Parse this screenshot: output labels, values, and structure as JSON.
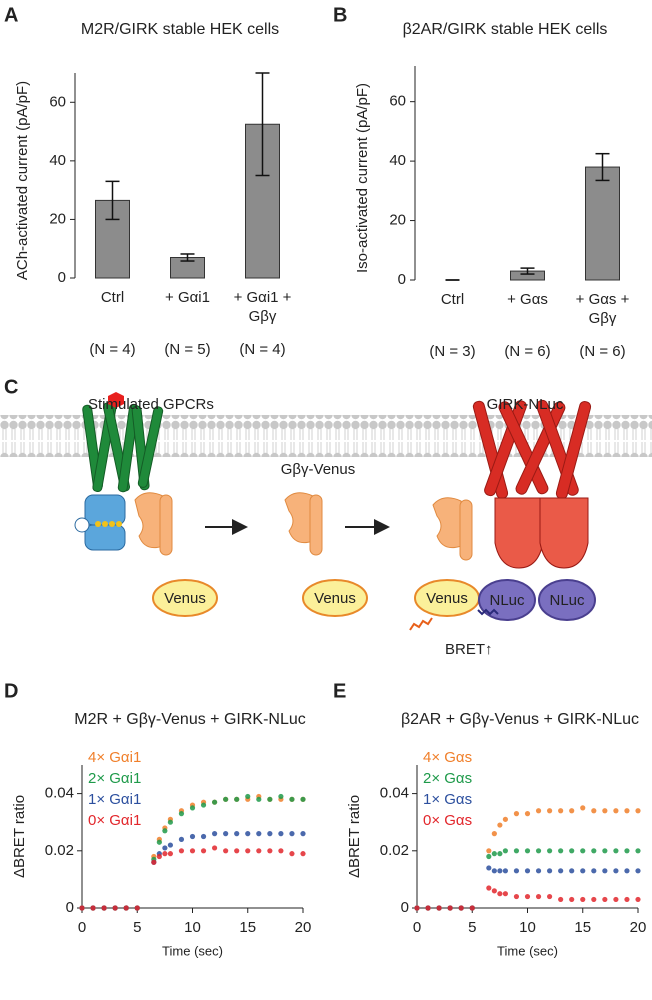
{
  "panel_labels": [
    "A",
    "B",
    "C",
    "D",
    "E"
  ],
  "chart_data": [
    {
      "type": "bar",
      "title": "M2R/GIRK stable HEK cells",
      "y_label": "ACh-activated current (pA/pF)",
      "categories": [
        "Ctrl",
        "+ Gαi1",
        "+ Gαi1 + Gβγ"
      ],
      "values": [
        26.5,
        7,
        52.5
      ],
      "errors": [
        6.5,
        1.2,
        17.5
      ],
      "n_labels": [
        "(N = 4)",
        "(N = 5)",
        "(N = 4)"
      ],
      "color": "#8c8c8c",
      "ylim": [
        0,
        70
      ],
      "yticks": [
        0,
        20,
        40,
        60
      ]
    },
    {
      "type": "bar",
      "title": "β2AR/GIRK stable HEK cells",
      "y_label": "Iso-activated current (pA/pF)",
      "categories": [
        "Ctrl",
        "+ Gαs",
        "+ Gαs + Gβγ"
      ],
      "values": [
        0,
        3,
        38
      ],
      "errors": [
        0,
        1,
        4.5
      ],
      "n_labels": [
        "(N = 3)",
        "(N = 6)",
        "(N = 6)"
      ],
      "color": "#8c8c8c",
      "ylim": [
        0,
        72
      ],
      "yticks": [
        0,
        20,
        40,
        60
      ]
    },
    {
      "type": "scatter",
      "title": "M2R + Gβγ-Venus + GIRK-NLuc",
      "x_label": "Time (sec)",
      "y_label": "ΔBRET ratio",
      "x": [
        0,
        1,
        2,
        3,
        4,
        5,
        6.5,
        7,
        7.5,
        8,
        9,
        10,
        11,
        12,
        13,
        14,
        15,
        16,
        17,
        18,
        19,
        20
      ],
      "series": [
        {
          "name": "4× Gαi1",
          "color": "#f07f2a",
          "values": [
            0,
            0,
            0,
            0,
            0,
            0,
            0.018,
            0.024,
            0.028,
            0.031,
            0.034,
            0.036,
            0.037,
            0.037,
            0.038,
            0.038,
            0.038,
            0.039,
            0.038,
            0.038,
            0.038,
            0.038
          ]
        },
        {
          "name": "2× Gαi1",
          "color": "#1e9a4a",
          "values": [
            0,
            0,
            0,
            0,
            0,
            0,
            0.017,
            0.023,
            0.027,
            0.03,
            0.033,
            0.035,
            0.036,
            0.037,
            0.038,
            0.038,
            0.039,
            0.038,
            0.038,
            0.039,
            0.038,
            0.038
          ]
        },
        {
          "name": "1× Gαi1",
          "color": "#2c4f9e",
          "values": [
            0,
            0,
            0,
            0,
            0,
            0,
            0.016,
            0.019,
            0.021,
            0.022,
            0.024,
            0.025,
            0.025,
            0.026,
            0.026,
            0.026,
            0.026,
            0.026,
            0.026,
            0.026,
            0.026,
            0.026
          ]
        },
        {
          "name": "0× Gαi1",
          "color": "#e2262b",
          "values": [
            0,
            0,
            0,
            0,
            0,
            0,
            0.016,
            0.018,
            0.019,
            0.019,
            0.02,
            0.02,
            0.02,
            0.021,
            0.02,
            0.02,
            0.02,
            0.02,
            0.02,
            0.02,
            0.019,
            0.019
          ]
        }
      ],
      "xlim": [
        0,
        20
      ],
      "xticks": [
        0,
        5,
        10,
        15,
        20
      ],
      "ylim": [
        0,
        0.05
      ],
      "yticks": [
        0,
        0.02,
        0.04
      ]
    },
    {
      "type": "scatter",
      "title": "β2AR + Gβγ-Venus + GIRK-NLuc",
      "x_label": "Time (sec)",
      "y_label": "ΔBRET ratio",
      "x": [
        0,
        1,
        2,
        3,
        4,
        5,
        6.5,
        7,
        7.5,
        8,
        9,
        10,
        11,
        12,
        13,
        14,
        15,
        16,
        17,
        18,
        19,
        20
      ],
      "series": [
        {
          "name": "4× Gαs",
          "color": "#f07f2a",
          "values": [
            0,
            0,
            0,
            0,
            0,
            0,
            0.02,
            0.026,
            0.029,
            0.031,
            0.033,
            0.033,
            0.034,
            0.034,
            0.034,
            0.034,
            0.035,
            0.034,
            0.034,
            0.034,
            0.034,
            0.034
          ]
        },
        {
          "name": "2× Gαs",
          "color": "#1e9a4a",
          "values": [
            0,
            0,
            0,
            0,
            0,
            0,
            0.018,
            0.019,
            0.019,
            0.02,
            0.02,
            0.02,
            0.02,
            0.02,
            0.02,
            0.02,
            0.02,
            0.02,
            0.02,
            0.02,
            0.02,
            0.02
          ]
        },
        {
          "name": "1× Gαs",
          "color": "#2c4f9e",
          "values": [
            0,
            0,
            0,
            0,
            0,
            0,
            0.014,
            0.013,
            0.013,
            0.013,
            0.013,
            0.013,
            0.013,
            0.013,
            0.013,
            0.013,
            0.013,
            0.013,
            0.013,
            0.013,
            0.013,
            0.013
          ]
        },
        {
          "name": "0× Gαs",
          "color": "#e2262b",
          "values": [
            0,
            0,
            0,
            0,
            0,
            0,
            0.007,
            0.006,
            0.005,
            0.005,
            0.004,
            0.004,
            0.004,
            0.004,
            0.003,
            0.003,
            0.003,
            0.003,
            0.003,
            0.003,
            0.003,
            0.003
          ]
        }
      ],
      "xlim": [
        0,
        20
      ],
      "xticks": [
        0,
        5,
        10,
        15,
        20
      ],
      "ylim": [
        0,
        0.05
      ],
      "yticks": [
        0,
        0.02,
        0.04
      ]
    }
  ],
  "diagram": {
    "gpcr_label": "Stimulated GPCRs",
    "gbg_label": "Gβγ-Venus",
    "girk_label": "GIRK-NLuc",
    "venus_labels": [
      "Venus",
      "Venus",
      "Venus"
    ],
    "nluc_labels": [
      "NLuc",
      "NLuc"
    ],
    "bret_label": "BRET↑"
  }
}
